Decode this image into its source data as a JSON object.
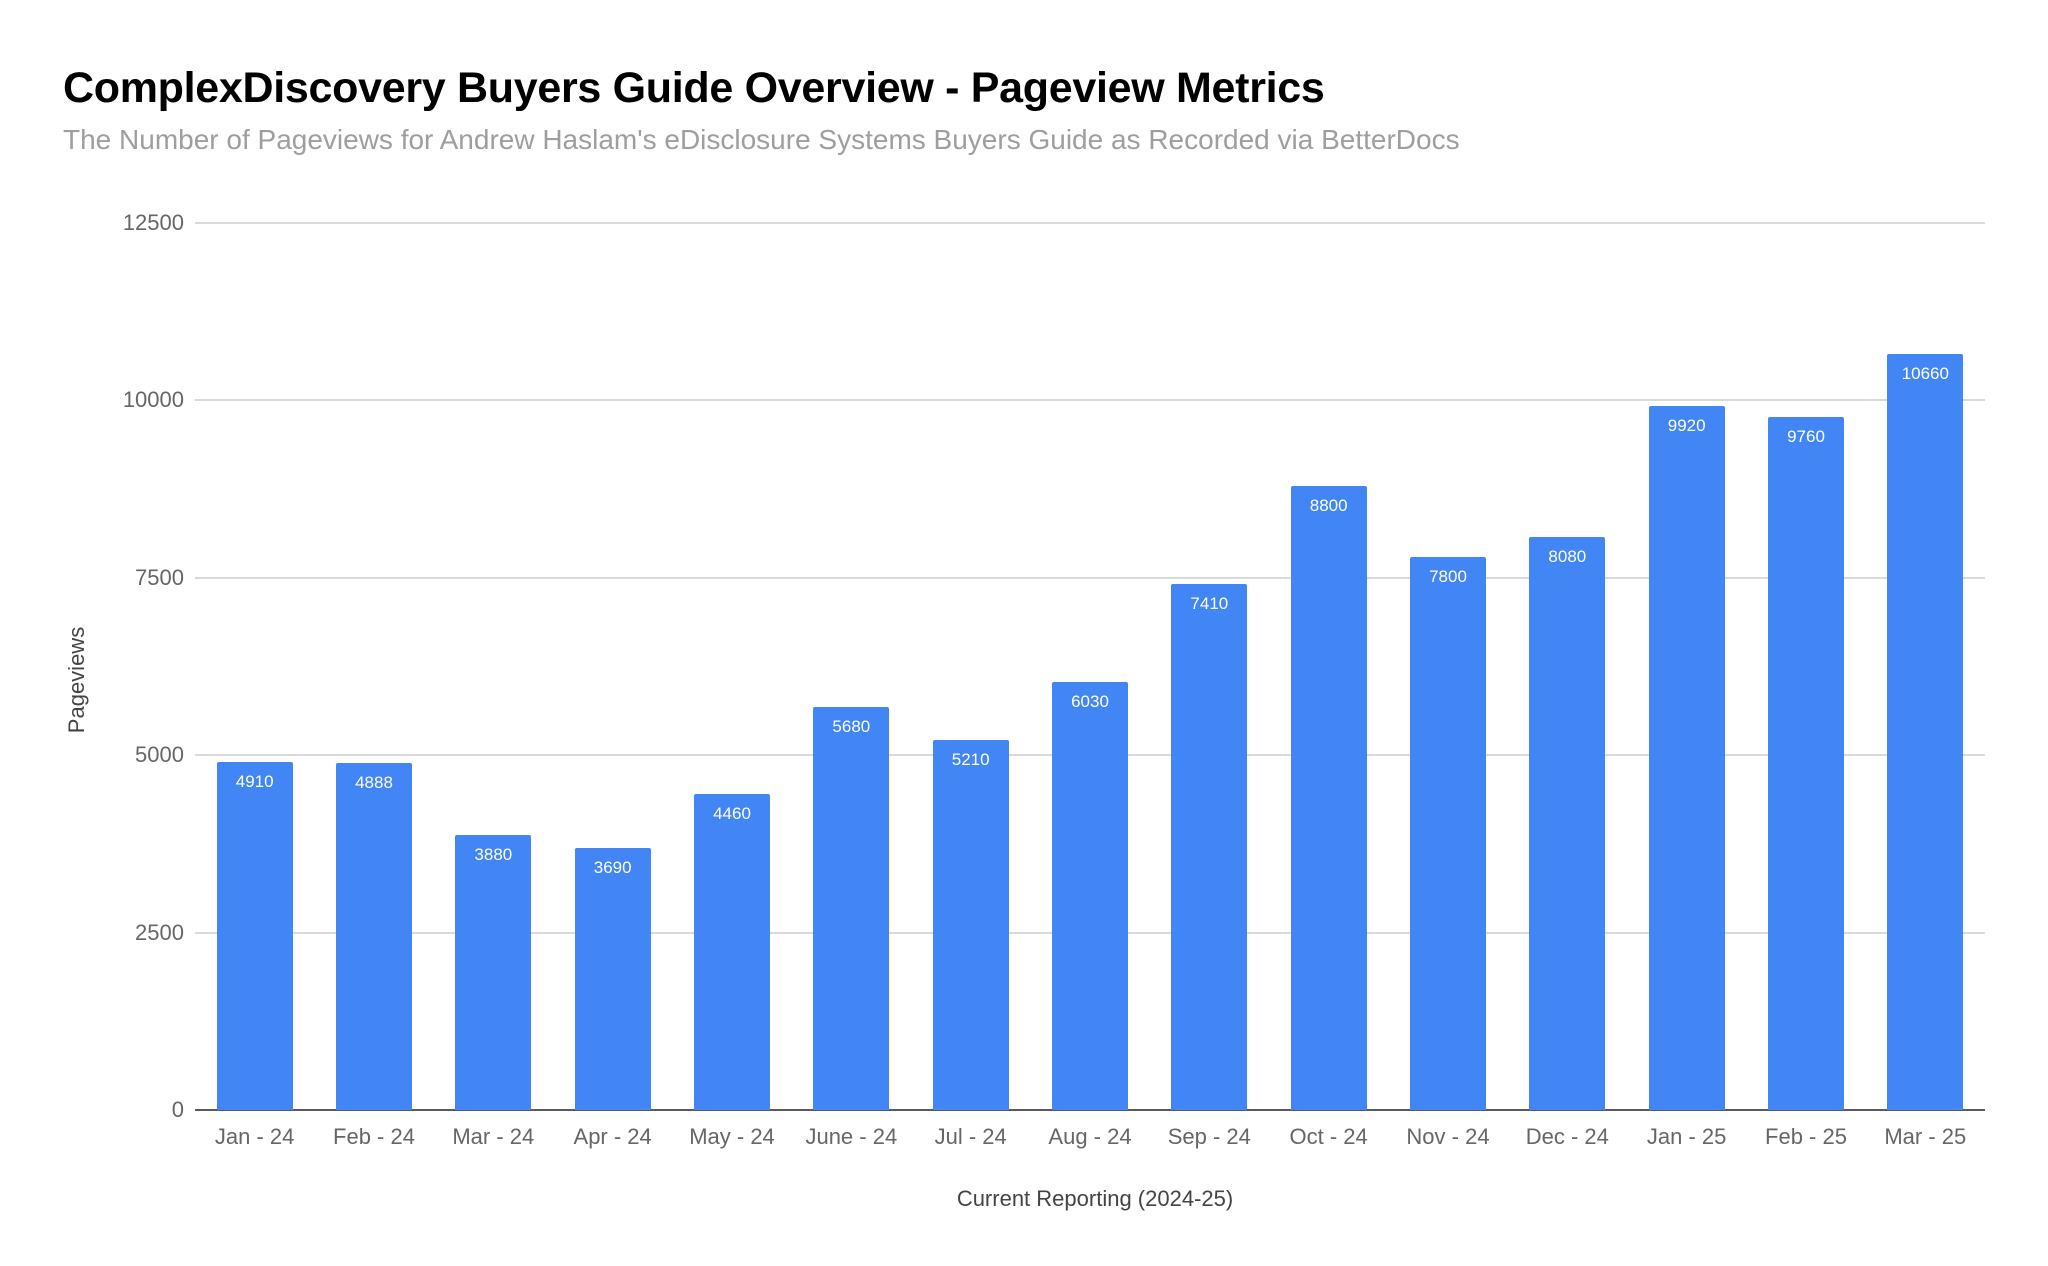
{
  "chart_data": {
    "type": "bar",
    "title": "ComplexDiscovery Buyers Guide Overview - Pageview Metrics",
    "subtitle": "The Number of Pageviews for Andrew Haslam's eDisclosure Systems Buyers Guide as Recorded via BetterDocs",
    "xlabel": "Current Reporting (2024-25)",
    "ylabel": "Pageviews",
    "categories": [
      "Jan - 24",
      "Feb - 24",
      "Mar - 24",
      "Apr - 24",
      "May - 24",
      "June - 24",
      "Jul - 24",
      "Aug - 24",
      "Sep - 24",
      "Oct - 24",
      "Nov - 24",
      "Dec - 24",
      "Jan - 25",
      "Feb - 25",
      "Mar - 25"
    ],
    "values": [
      4910,
      4888,
      3880,
      3690,
      4460,
      5680,
      5210,
      6030,
      7410,
      8800,
      7800,
      8080,
      9920,
      9760,
      10660
    ],
    "ylim": [
      0,
      12500
    ],
    "yticks": [
      "0",
      "2500",
      "5000",
      "7500",
      "10000",
      "12500"
    ],
    "grid": true,
    "legend": "none",
    "data_labels": true,
    "bar_color": "#4285f4"
  }
}
